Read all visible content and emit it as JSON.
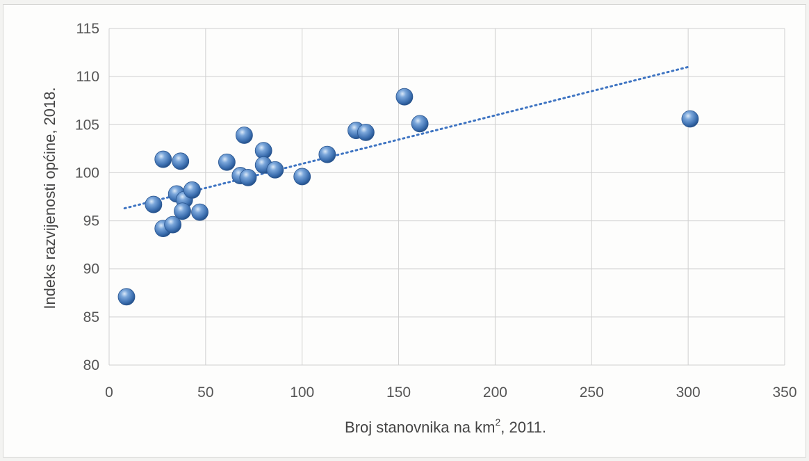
{
  "chart_data": {
    "type": "scatter",
    "title": "",
    "xlabel": "Broj stanovnika na km",
    "xlabel_sup": "2",
    "xlabel_suffix": ", 2011.",
    "ylabel": "Indeks razvijenosti općine, 2018.",
    "xlim": [
      0,
      350
    ],
    "ylim": [
      80,
      115
    ],
    "xticks": [
      0,
      50,
      100,
      150,
      200,
      250,
      300,
      350
    ],
    "yticks": [
      80,
      85,
      90,
      95,
      100,
      105,
      110,
      115
    ],
    "grid": true,
    "legend": "none",
    "marker_color": "#4a7fc0",
    "trendline": {
      "style": "dotted",
      "color": "#3e74c2",
      "x": [
        8,
        300
      ],
      "y": [
        96.3,
        111.0
      ]
    },
    "points": [
      {
        "x": 9,
        "y": 87.1
      },
      {
        "x": 23,
        "y": 96.7
      },
      {
        "x": 28,
        "y": 94.2
      },
      {
        "x": 33,
        "y": 94.6
      },
      {
        "x": 28,
        "y": 101.4
      },
      {
        "x": 37,
        "y": 101.2
      },
      {
        "x": 35,
        "y": 97.8
      },
      {
        "x": 39,
        "y": 97.2
      },
      {
        "x": 38,
        "y": 96.0
      },
      {
        "x": 43,
        "y": 98.2
      },
      {
        "x": 47,
        "y": 95.9
      },
      {
        "x": 61,
        "y": 101.1
      },
      {
        "x": 70,
        "y": 103.9
      },
      {
        "x": 68,
        "y": 99.7
      },
      {
        "x": 72,
        "y": 99.5
      },
      {
        "x": 80,
        "y": 102.3
      },
      {
        "x": 80,
        "y": 100.8
      },
      {
        "x": 86,
        "y": 100.3
      },
      {
        "x": 100,
        "y": 99.6
      },
      {
        "x": 113,
        "y": 101.9
      },
      {
        "x": 128,
        "y": 104.4
      },
      {
        "x": 133,
        "y": 104.2
      },
      {
        "x": 153,
        "y": 107.9
      },
      {
        "x": 161,
        "y": 105.1
      },
      {
        "x": 301,
        "y": 105.6
      }
    ]
  }
}
